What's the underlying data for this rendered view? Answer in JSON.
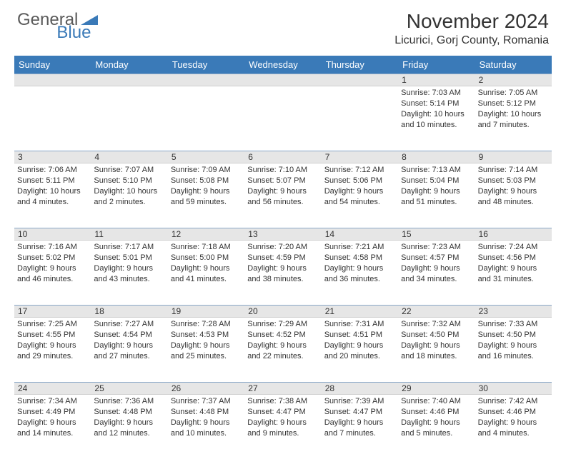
{
  "brand": {
    "part1": "General",
    "part2": "Blue"
  },
  "title": "November 2024",
  "location": "Licurici, Gorj County, Romania",
  "colors": {
    "header_bg": "#3a7ab8",
    "header_fg": "#ffffff",
    "daynum_bg": "#e6e6e6",
    "daynum_border_top": "#8aa8c8",
    "text": "#333333",
    "logo_gray": "#5a5a5a",
    "logo_blue": "#3a7ab8"
  },
  "day_names": [
    "Sunday",
    "Monday",
    "Tuesday",
    "Wednesday",
    "Thursday",
    "Friday",
    "Saturday"
  ],
  "weeks": [
    [
      {
        "n": "",
        "sr": "",
        "ss": "",
        "dl": ""
      },
      {
        "n": "",
        "sr": "",
        "ss": "",
        "dl": ""
      },
      {
        "n": "",
        "sr": "",
        "ss": "",
        "dl": ""
      },
      {
        "n": "",
        "sr": "",
        "ss": "",
        "dl": ""
      },
      {
        "n": "",
        "sr": "",
        "ss": "",
        "dl": ""
      },
      {
        "n": "1",
        "sr": "Sunrise: 7:03 AM",
        "ss": "Sunset: 5:14 PM",
        "dl": "Daylight: 10 hours and 10 minutes."
      },
      {
        "n": "2",
        "sr": "Sunrise: 7:05 AM",
        "ss": "Sunset: 5:12 PM",
        "dl": "Daylight: 10 hours and 7 minutes."
      }
    ],
    [
      {
        "n": "3",
        "sr": "Sunrise: 7:06 AM",
        "ss": "Sunset: 5:11 PM",
        "dl": "Daylight: 10 hours and 4 minutes."
      },
      {
        "n": "4",
        "sr": "Sunrise: 7:07 AM",
        "ss": "Sunset: 5:10 PM",
        "dl": "Daylight: 10 hours and 2 minutes."
      },
      {
        "n": "5",
        "sr": "Sunrise: 7:09 AM",
        "ss": "Sunset: 5:08 PM",
        "dl": "Daylight: 9 hours and 59 minutes."
      },
      {
        "n": "6",
        "sr": "Sunrise: 7:10 AM",
        "ss": "Sunset: 5:07 PM",
        "dl": "Daylight: 9 hours and 56 minutes."
      },
      {
        "n": "7",
        "sr": "Sunrise: 7:12 AM",
        "ss": "Sunset: 5:06 PM",
        "dl": "Daylight: 9 hours and 54 minutes."
      },
      {
        "n": "8",
        "sr": "Sunrise: 7:13 AM",
        "ss": "Sunset: 5:04 PM",
        "dl": "Daylight: 9 hours and 51 minutes."
      },
      {
        "n": "9",
        "sr": "Sunrise: 7:14 AM",
        "ss": "Sunset: 5:03 PM",
        "dl": "Daylight: 9 hours and 48 minutes."
      }
    ],
    [
      {
        "n": "10",
        "sr": "Sunrise: 7:16 AM",
        "ss": "Sunset: 5:02 PM",
        "dl": "Daylight: 9 hours and 46 minutes."
      },
      {
        "n": "11",
        "sr": "Sunrise: 7:17 AM",
        "ss": "Sunset: 5:01 PM",
        "dl": "Daylight: 9 hours and 43 minutes."
      },
      {
        "n": "12",
        "sr": "Sunrise: 7:18 AM",
        "ss": "Sunset: 5:00 PM",
        "dl": "Daylight: 9 hours and 41 minutes."
      },
      {
        "n": "13",
        "sr": "Sunrise: 7:20 AM",
        "ss": "Sunset: 4:59 PM",
        "dl": "Daylight: 9 hours and 38 minutes."
      },
      {
        "n": "14",
        "sr": "Sunrise: 7:21 AM",
        "ss": "Sunset: 4:58 PM",
        "dl": "Daylight: 9 hours and 36 minutes."
      },
      {
        "n": "15",
        "sr": "Sunrise: 7:23 AM",
        "ss": "Sunset: 4:57 PM",
        "dl": "Daylight: 9 hours and 34 minutes."
      },
      {
        "n": "16",
        "sr": "Sunrise: 7:24 AM",
        "ss": "Sunset: 4:56 PM",
        "dl": "Daylight: 9 hours and 31 minutes."
      }
    ],
    [
      {
        "n": "17",
        "sr": "Sunrise: 7:25 AM",
        "ss": "Sunset: 4:55 PM",
        "dl": "Daylight: 9 hours and 29 minutes."
      },
      {
        "n": "18",
        "sr": "Sunrise: 7:27 AM",
        "ss": "Sunset: 4:54 PM",
        "dl": "Daylight: 9 hours and 27 minutes."
      },
      {
        "n": "19",
        "sr": "Sunrise: 7:28 AM",
        "ss": "Sunset: 4:53 PM",
        "dl": "Daylight: 9 hours and 25 minutes."
      },
      {
        "n": "20",
        "sr": "Sunrise: 7:29 AM",
        "ss": "Sunset: 4:52 PM",
        "dl": "Daylight: 9 hours and 22 minutes."
      },
      {
        "n": "21",
        "sr": "Sunrise: 7:31 AM",
        "ss": "Sunset: 4:51 PM",
        "dl": "Daylight: 9 hours and 20 minutes."
      },
      {
        "n": "22",
        "sr": "Sunrise: 7:32 AM",
        "ss": "Sunset: 4:50 PM",
        "dl": "Daylight: 9 hours and 18 minutes."
      },
      {
        "n": "23",
        "sr": "Sunrise: 7:33 AM",
        "ss": "Sunset: 4:50 PM",
        "dl": "Daylight: 9 hours and 16 minutes."
      }
    ],
    [
      {
        "n": "24",
        "sr": "Sunrise: 7:34 AM",
        "ss": "Sunset: 4:49 PM",
        "dl": "Daylight: 9 hours and 14 minutes."
      },
      {
        "n": "25",
        "sr": "Sunrise: 7:36 AM",
        "ss": "Sunset: 4:48 PM",
        "dl": "Daylight: 9 hours and 12 minutes."
      },
      {
        "n": "26",
        "sr": "Sunrise: 7:37 AM",
        "ss": "Sunset: 4:48 PM",
        "dl": "Daylight: 9 hours and 10 minutes."
      },
      {
        "n": "27",
        "sr": "Sunrise: 7:38 AM",
        "ss": "Sunset: 4:47 PM",
        "dl": "Daylight: 9 hours and 9 minutes."
      },
      {
        "n": "28",
        "sr": "Sunrise: 7:39 AM",
        "ss": "Sunset: 4:47 PM",
        "dl": "Daylight: 9 hours and 7 minutes."
      },
      {
        "n": "29",
        "sr": "Sunrise: 7:40 AM",
        "ss": "Sunset: 4:46 PM",
        "dl": "Daylight: 9 hours and 5 minutes."
      },
      {
        "n": "30",
        "sr": "Sunrise: 7:42 AM",
        "ss": "Sunset: 4:46 PM",
        "dl": "Daylight: 9 hours and 4 minutes."
      }
    ]
  ]
}
